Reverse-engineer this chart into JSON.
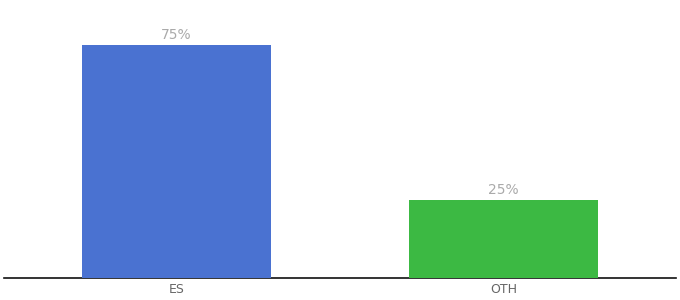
{
  "categories": [
    "ES",
    "OTH"
  ],
  "values": [
    75,
    25
  ],
  "bar_colors": [
    "#4a72d1",
    "#3cb943"
  ],
  "label_texts": [
    "75%",
    "25%"
  ],
  "label_color": "#aaaaaa",
  "label_fontsize": 10,
  "xlabel_fontsize": 9,
  "xlabel_color": "#666666",
  "ylim": [
    0,
    88
  ],
  "background_color": "#ffffff",
  "axis_line_color": "#111111",
  "bar_width": 0.22,
  "x_positions": [
    0.28,
    0.66
  ],
  "xlim": [
    0.08,
    0.86
  ]
}
